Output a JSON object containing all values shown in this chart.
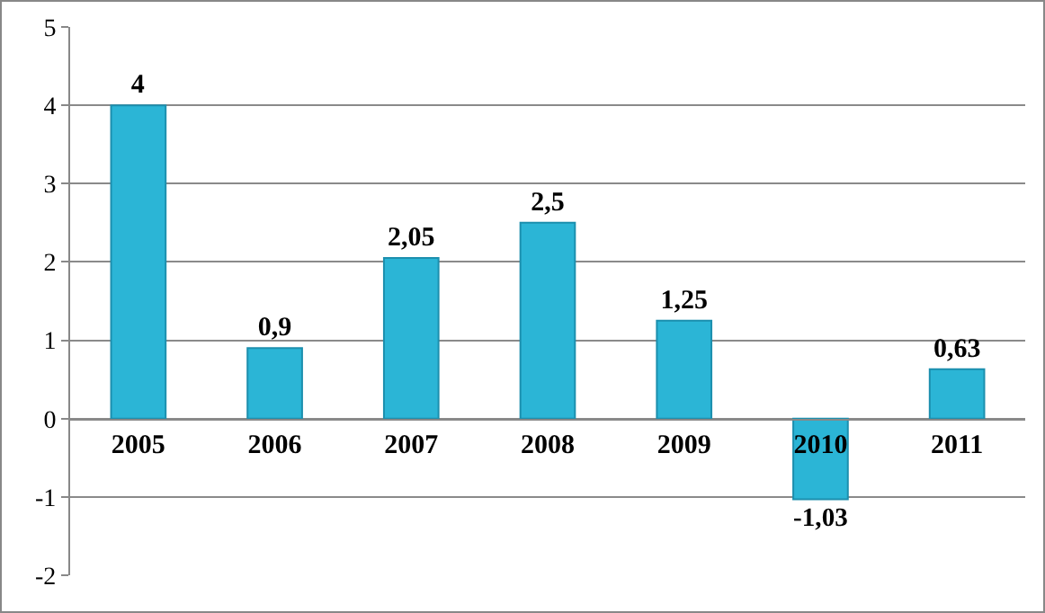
{
  "chart_data": {
    "type": "bar",
    "categories": [
      "2005",
      "2006",
      "2007",
      "2008",
      "2009",
      "2010",
      "2011"
    ],
    "values": [
      4,
      0.9,
      2.05,
      2.5,
      1.25,
      -1.03,
      0.63
    ],
    "value_labels": [
      "4",
      "0,9",
      "2,05",
      "2,5",
      "1,25",
      "-1,03",
      "0,63"
    ],
    "color": "#2bb5d6",
    "ylim": [
      -2,
      5
    ],
    "yticks": [
      -2,
      -1,
      0,
      1,
      2,
      3,
      4,
      5
    ],
    "grid": "y",
    "legend": false
  }
}
